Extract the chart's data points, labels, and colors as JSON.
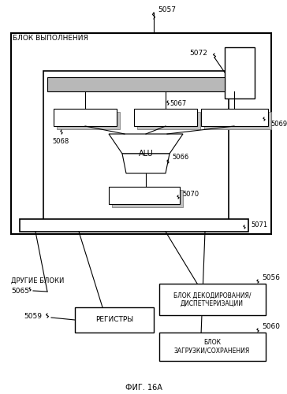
{
  "title": "ФИГ. 16А",
  "bg_color": "#ffffff",
  "outer_box_label": "БЛОК ВЫПОЛНЕНИЯ",
  "ref_5057": "5057",
  "ref_5072": "5072",
  "ref_5071": "5071",
  "ref_5067": "5067",
  "ref_5068": "5068",
  "ref_5069": "5069",
  "ref_5066": "5066",
  "ref_5070": "5070",
  "ref_5065": "5065",
  "ref_5059": "5059",
  "ref_5056": "5056",
  "ref_5060": "5060",
  "text_registers": "РЕГИСТРЫ",
  "text_decode": "БЛОК ДЕКОДИРОВАНИЯ/\nДИСПЕТЧЕРИЗАЦИИ",
  "text_load": "БЛОК\nЗАГРУЗКИ/СОХРАНЕНИЯ",
  "text_other_blocks": "ДРУГИЕ БЛОКИ",
  "text_alu": "ALU"
}
